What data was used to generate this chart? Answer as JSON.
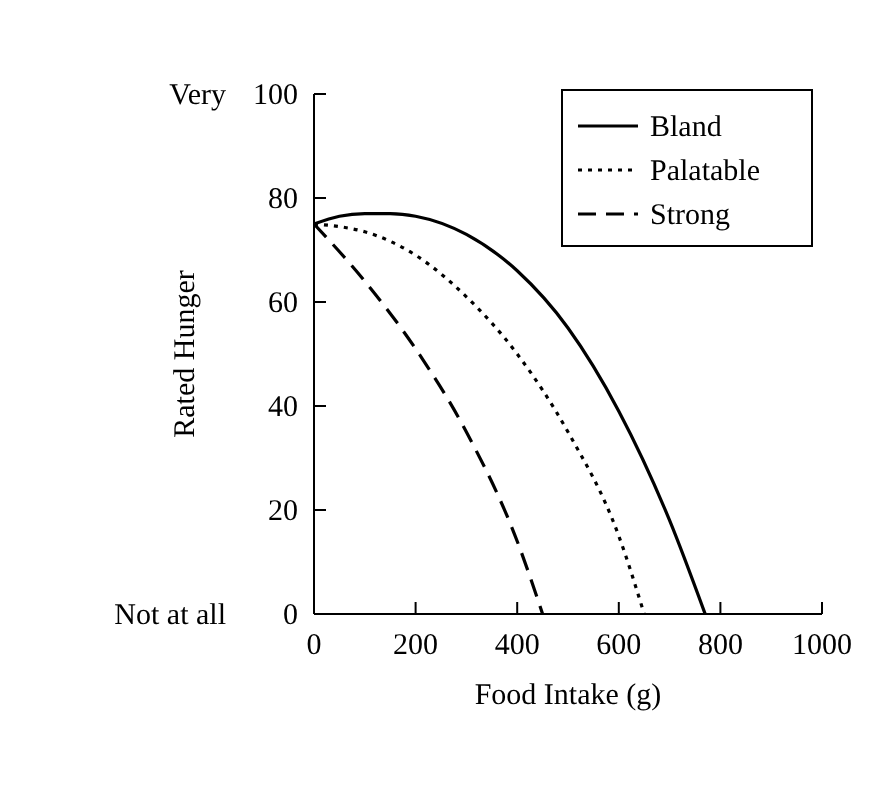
{
  "chart_data": {
    "type": "line",
    "xlabel": "Food Intake (g)",
    "ylabel": "Rated Hunger",
    "xlim": [
      0,
      1000
    ],
    "xticks": [
      0,
      200,
      400,
      600,
      800,
      1000
    ],
    "ylim": [
      0,
      100
    ],
    "yticks": [
      0,
      20,
      40,
      60,
      80,
      100
    ],
    "grid": false,
    "legend": "top right",
    "marker": "none",
    "annotations": [
      "Very",
      "Not at all"
    ],
    "series": [
      {
        "name": "Bland",
        "color": "#000000",
        "line_style": "solid",
        "x": [
          0,
          50,
          100,
          150,
          200,
          300,
          400,
          500,
          600,
          700,
          770
        ],
        "values": [
          75,
          76.5,
          77,
          77,
          76.5,
          73,
          66,
          55,
          39,
          18,
          0
        ]
      },
      {
        "name": "Palatable",
        "color": "#000000",
        "line_style": "dotted",
        "x": [
          0,
          50,
          100,
          200,
          300,
          400,
          500,
          600,
          650
        ],
        "values": [
          75,
          74.5,
          73.5,
          69,
          61,
          50,
          35,
          15,
          0
        ]
      },
      {
        "name": "Strong",
        "color": "#000000",
        "line_style": "dashed",
        "x": [
          0,
          100,
          200,
          300,
          400,
          450
        ],
        "values": [
          75,
          64,
          51,
          35,
          14,
          0
        ]
      }
    ]
  }
}
